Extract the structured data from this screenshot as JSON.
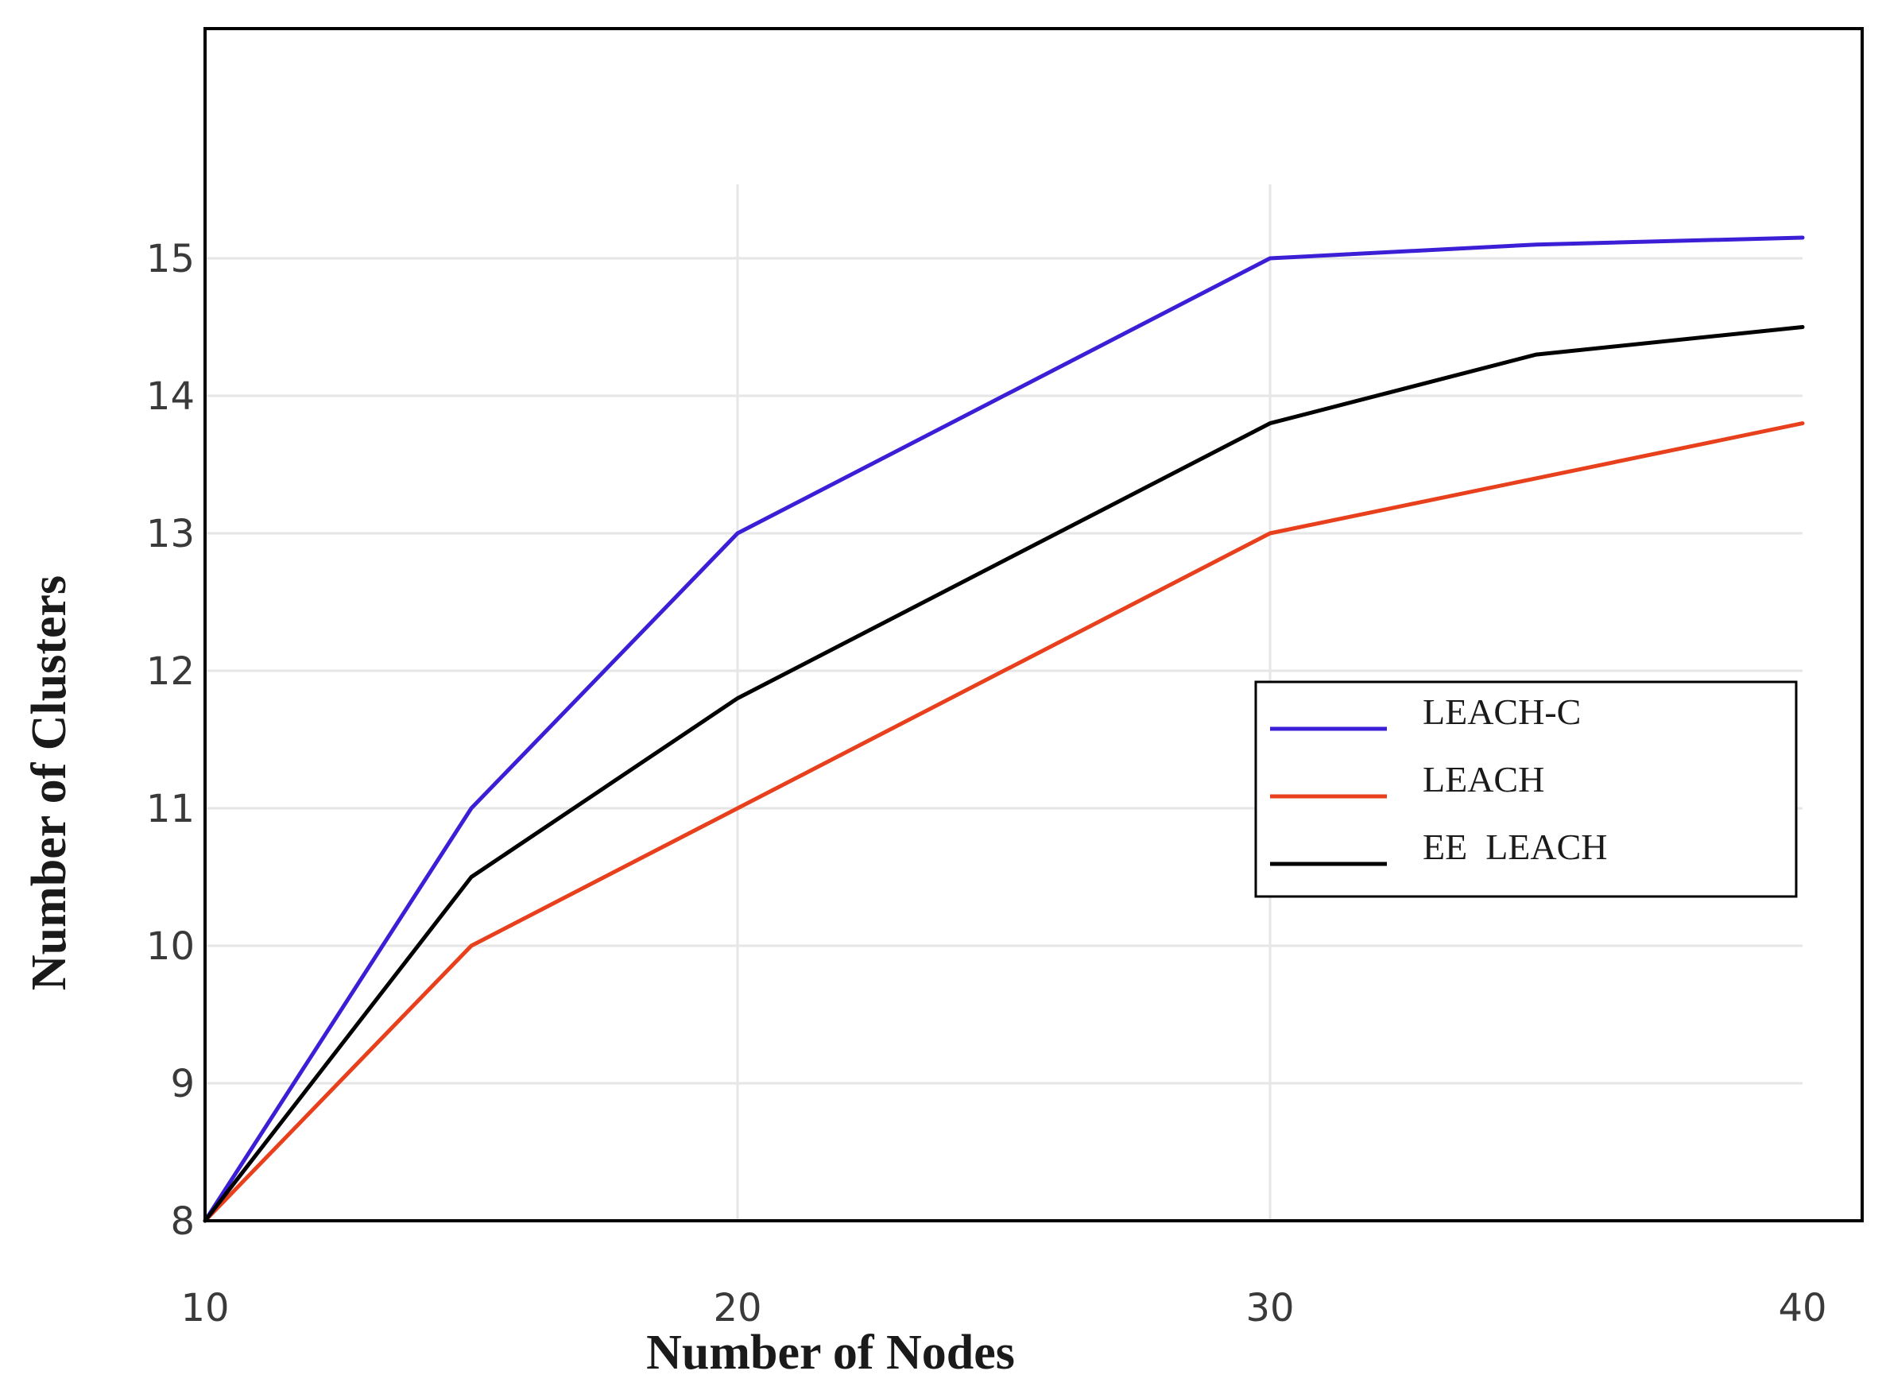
{
  "chart_data": {
    "type": "line",
    "xlabel": "Number of Nodes",
    "ylabel": "Number of Clusters",
    "xlim": [
      10,
      40
    ],
    "ylim": [
      8,
      16.5
    ],
    "x_ticks": [
      10,
      20,
      30,
      40
    ],
    "y_ticks": [
      8,
      9,
      10,
      11,
      12,
      13,
      14,
      15
    ],
    "x_grid": [
      20,
      30
    ],
    "y_grid": [
      9,
      10,
      11,
      12,
      13,
      14,
      15
    ],
    "grid": true,
    "legend_position": "right",
    "series": [
      {
        "name": "LEACH-C",
        "color": "#3b1fd6",
        "x": [
          10,
          15,
          20,
          30,
          35,
          40
        ],
        "y": [
          8,
          11,
          13,
          15,
          15.1,
          15.15
        ]
      },
      {
        "name": "LEACH",
        "color": "#e8401c",
        "x": [
          10,
          15,
          20,
          30,
          35,
          40
        ],
        "y": [
          8,
          10,
          11,
          13,
          13.4,
          13.8
        ]
      },
      {
        "name": "EE  LEACH",
        "color": "#000000",
        "x": [
          10,
          15,
          20,
          30,
          35,
          40
        ],
        "y": [
          8,
          10.5,
          11.8,
          13.8,
          14.3,
          14.5
        ]
      }
    ]
  }
}
